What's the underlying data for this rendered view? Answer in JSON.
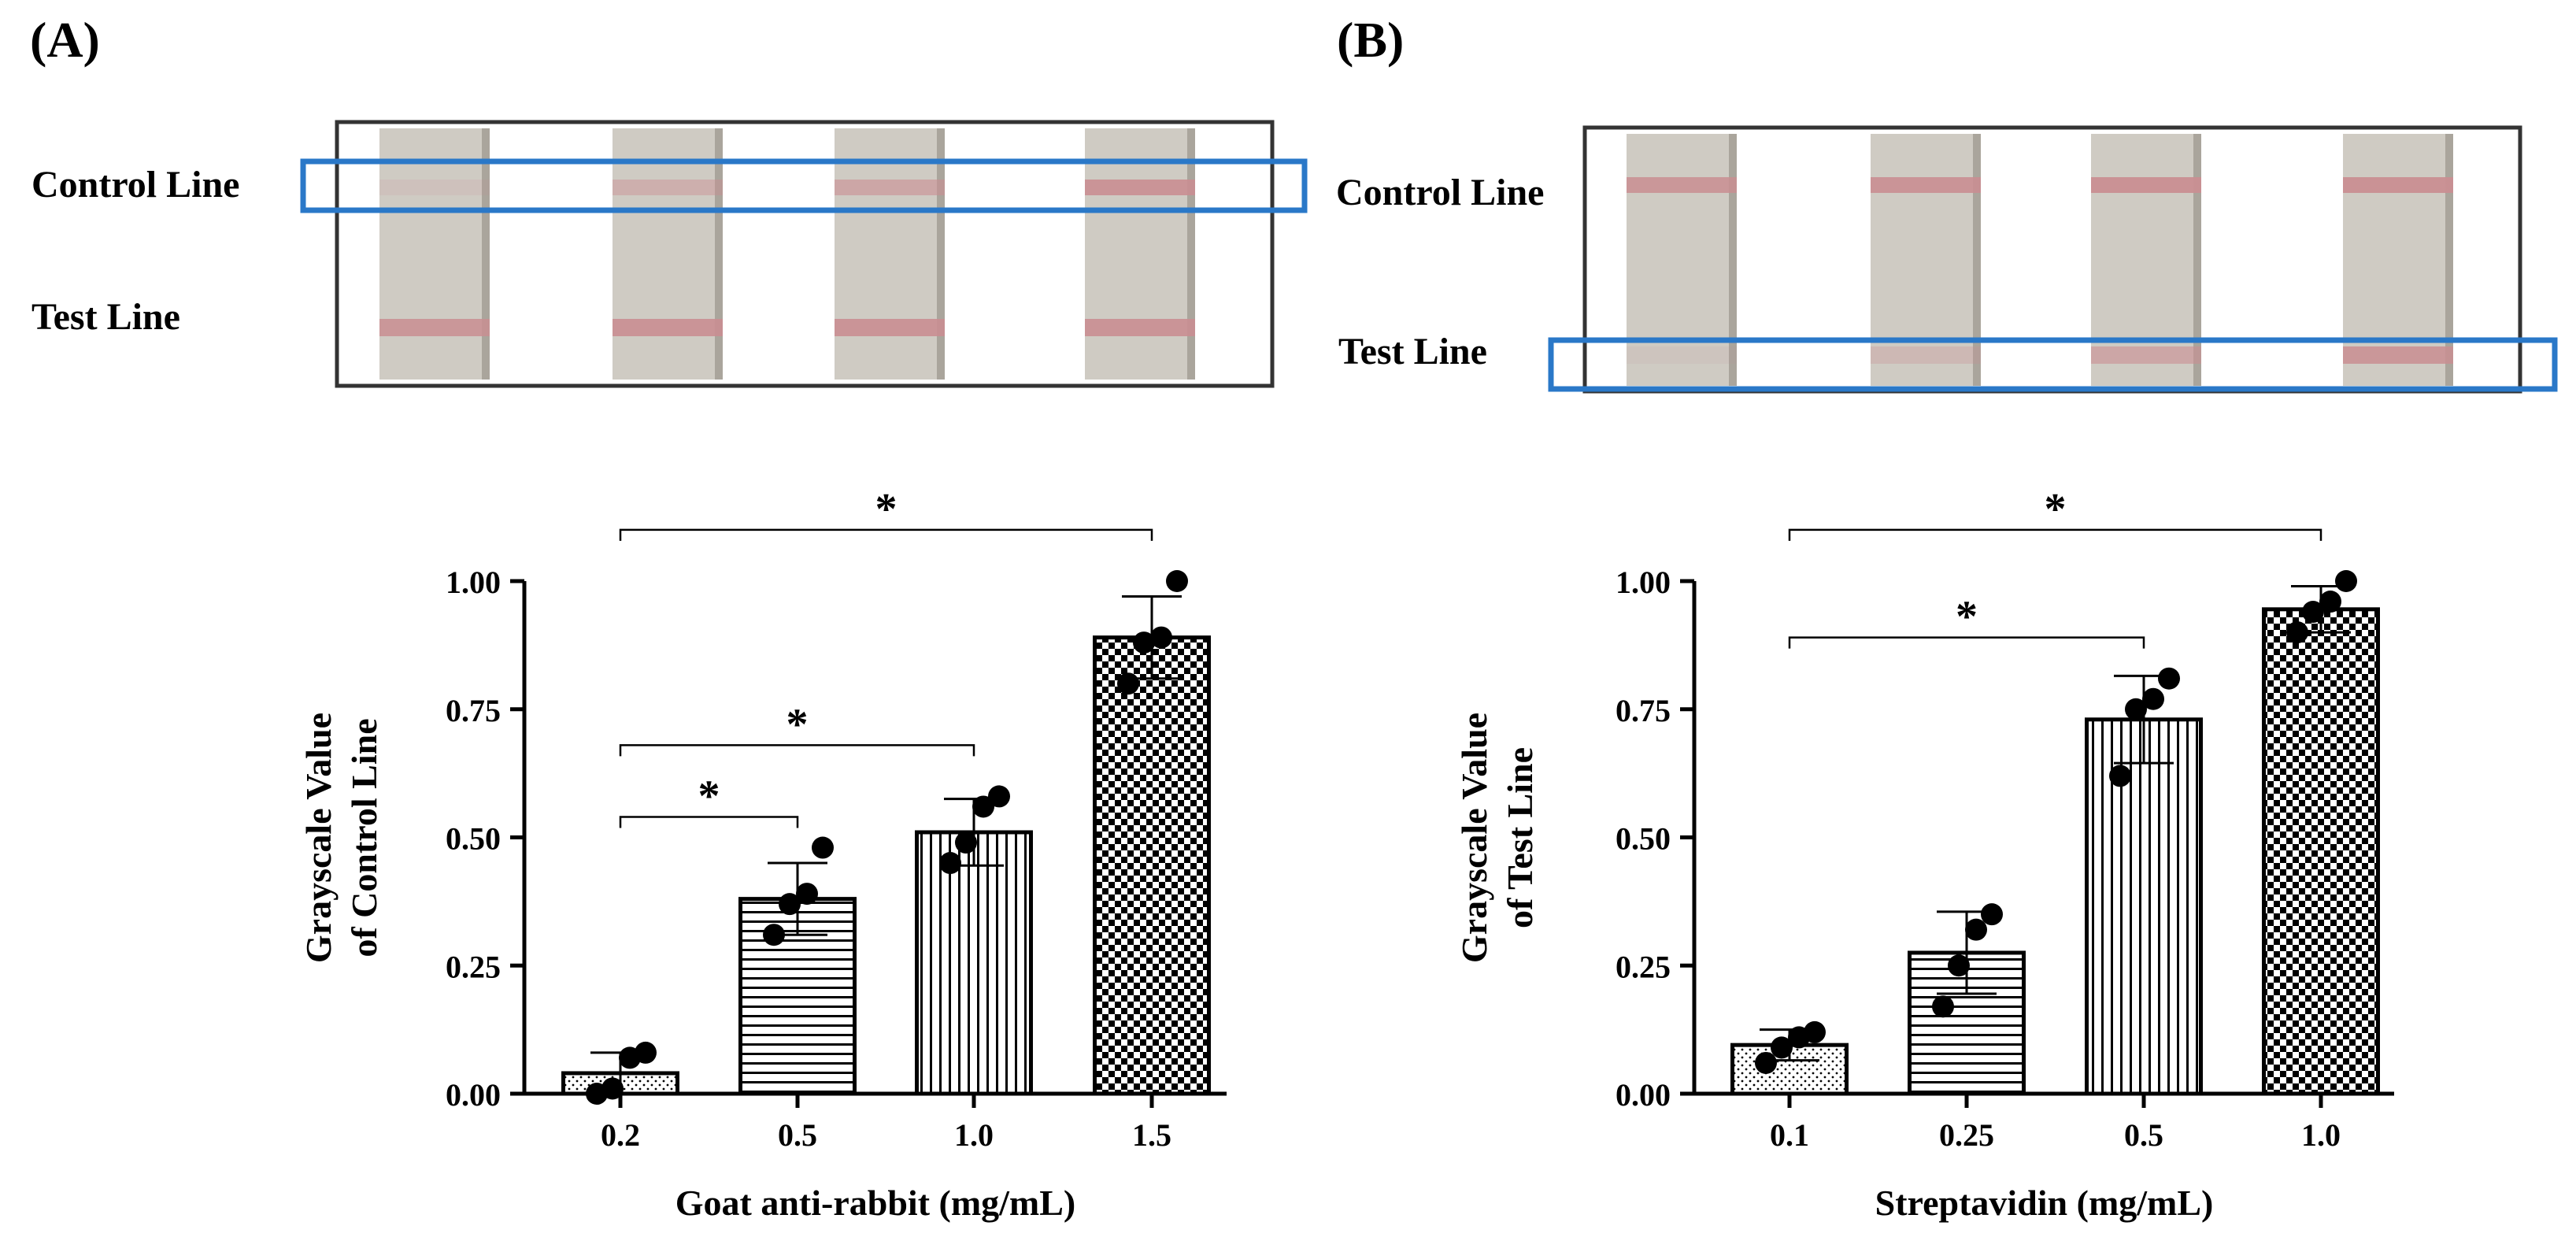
{
  "panels": [
    {
      "label": "(A)",
      "strip_labels": {
        "control": "Control Line",
        "test": "Test Line"
      },
      "highlight": "control"
    },
    {
      "label": "(B)",
      "strip_labels": {
        "control": "Control Line",
        "test": "Test Line"
      },
      "highlight": "test"
    }
  ],
  "colors": {
    "strip": "#cfcbc3",
    "strip_shadow": "#aaa59c",
    "band": "#c98e92",
    "highlight": "#2a78c8",
    "bar_fill": "#000000"
  },
  "chart_data": [
    {
      "type": "bar",
      "title": "",
      "xlabel": "Goat anti-rabbit (mg/mL)",
      "ylabel_lines": [
        "Grayscale Value",
        "of Control Line"
      ],
      "categories": [
        "0.2",
        "0.5",
        "1.0",
        "1.5"
      ],
      "values": [
        0.04,
        0.38,
        0.51,
        0.89
      ],
      "errors": [
        0.04,
        0.07,
        0.065,
        0.08
      ],
      "points": [
        [
          0.0,
          0.01,
          0.07,
          0.08
        ],
        [
          0.31,
          0.37,
          0.39,
          0.48
        ],
        [
          0.45,
          0.49,
          0.56,
          0.58
        ],
        [
          0.8,
          0.88,
          0.89,
          1.0
        ]
      ],
      "patterns": [
        "dots",
        "hstripes",
        "vstripes",
        "checker"
      ],
      "ylim": [
        0,
        1.0
      ],
      "yticks": [
        "0.00",
        "0.25",
        "0.50",
        "0.75",
        "1.00"
      ],
      "brackets": [
        {
          "from": 0,
          "to": 1,
          "y": 0.54,
          "label": "*"
        },
        {
          "from": 0,
          "to": 2,
          "y": 0.68,
          "label": "*"
        },
        {
          "from": 0,
          "to": 3,
          "y": 1.1,
          "label": "*"
        }
      ]
    },
    {
      "type": "bar",
      "title": "",
      "xlabel": "Streptavidin (mg/mL)",
      "ylabel_lines": [
        "Grayscale Value",
        "of Test Line"
      ],
      "categories": [
        "0.1",
        "0.25",
        "0.5",
        "1.0"
      ],
      "values": [
        0.095,
        0.275,
        0.73,
        0.945
      ],
      "errors": [
        0.03,
        0.08,
        0.085,
        0.045
      ],
      "points": [
        [
          0.06,
          0.09,
          0.11,
          0.12
        ],
        [
          0.17,
          0.25,
          0.32,
          0.35
        ],
        [
          0.62,
          0.75,
          0.77,
          0.81
        ],
        [
          0.9,
          0.94,
          0.96,
          1.0
        ]
      ],
      "patterns": [
        "dots",
        "hstripes",
        "vstripes",
        "checker"
      ],
      "ylim": [
        0,
        1.0
      ],
      "yticks": [
        "0.00",
        "0.25",
        "0.50",
        "0.75",
        "1.00"
      ],
      "brackets": [
        {
          "from": 0,
          "to": 2,
          "y": 0.89,
          "label": "*"
        },
        {
          "from": 0,
          "to": 3,
          "y": 1.1,
          "label": "*"
        }
      ]
    }
  ]
}
